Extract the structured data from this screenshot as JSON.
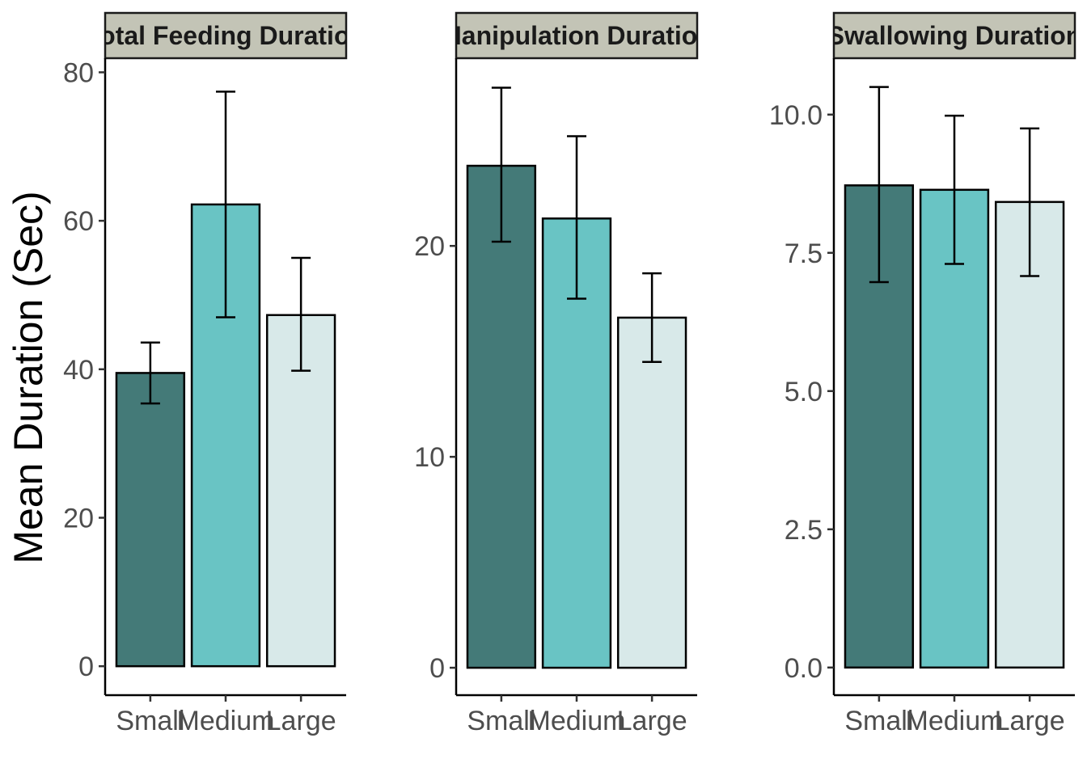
{
  "chart_data": {
    "type": "bar",
    "ylabel": "Mean Duration (Sec)",
    "xlabel": "",
    "categories": [
      "Small",
      "Medium",
      "Large"
    ],
    "colors": [
      "#447a78",
      "#69c4c4",
      "#d8e9e9"
    ],
    "strip_fill": "#c3c4b6",
    "panels": [
      {
        "title": "Total Feeding Duration",
        "values": [
          39.5,
          62.2,
          47.3
        ],
        "err_low": [
          35.4,
          47.0,
          39.8
        ],
        "err_high": [
          43.6,
          77.4,
          55.0
        ],
        "ylim": [
          -3.9,
          81.9
        ],
        "yticks": [
          0,
          20,
          40,
          60,
          80
        ],
        "ytick_labels": [
          "0",
          "20",
          "40",
          "60",
          "80"
        ]
      },
      {
        "title": "Manipulation Duration",
        "values": [
          23.8,
          21.3,
          16.6
        ],
        "err_low": [
          20.2,
          17.5,
          14.5
        ],
        "err_high": [
          27.5,
          25.2,
          18.7
        ],
        "ylim": [
          -1.3,
          28.9
        ],
        "yticks": [
          0,
          10,
          20
        ],
        "ytick_labels": [
          "0",
          "10",
          "20"
        ]
      },
      {
        "title": "Swallowing Duration",
        "values": [
          8.72,
          8.64,
          8.42
        ],
        "err_low": [
          6.97,
          7.3,
          7.08
        ],
        "err_high": [
          10.5,
          9.98,
          9.75
        ],
        "ylim": [
          -0.5,
          11.02
        ],
        "yticks": [
          0,
          2.5,
          5,
          7.5,
          10
        ],
        "ytick_labels": [
          "0.0",
          "2.5",
          "5.0",
          "7.5",
          "10.0"
        ]
      }
    ]
  }
}
